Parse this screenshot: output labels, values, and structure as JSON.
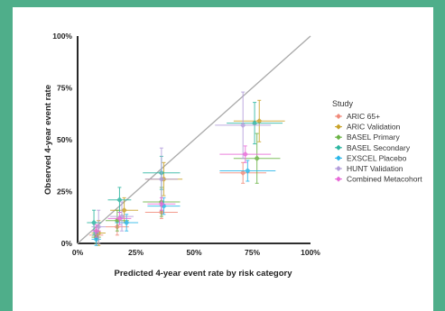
{
  "colors": {
    "page_border": "#4fae8a",
    "panel": "#ffffff",
    "identity_line": "#a9a9a9"
  },
  "chart_data": {
    "type": "scatter",
    "title": "",
    "xlabel": "Predicted 4-year event rate by risk category",
    "ylabel": "Observed 4-year event rate",
    "xlim": [
      0,
      100
    ],
    "ylim": [
      0,
      100
    ],
    "x_ticks": [
      "0%",
      "25%",
      "50%",
      "75%",
      "100%"
    ],
    "y_ticks": [
      "0%",
      "25%",
      "50%",
      "75%",
      "100%"
    ],
    "tick_values": [
      0,
      25,
      50,
      75,
      100
    ],
    "grid": false,
    "identity_line": true,
    "legend": {
      "title": "Study",
      "position": "right"
    },
    "series": [
      {
        "name": "ARIC 65+",
        "color": "#f08a7a",
        "points": [
          {
            "x": 8,
            "y": 4,
            "xerr": 3,
            "yerr": 4
          },
          {
            "x": 17,
            "y": 8,
            "xerr": 5,
            "yerr": 4
          },
          {
            "x": 36,
            "y": 15,
            "xerr": 7,
            "yerr": 3
          },
          {
            "x": 71,
            "y": 34,
            "xerr": 10,
            "yerr": 5
          }
        ]
      },
      {
        "name": "ARIC Validation",
        "color": "#c9a227",
        "points": [
          {
            "x": 9,
            "y": 5,
            "xerr": 3,
            "yerr": 6
          },
          {
            "x": 20,
            "y": 16,
            "xerr": 6,
            "yerr": 6
          },
          {
            "x": 37,
            "y": 31,
            "xerr": 8,
            "yerr": 8
          },
          {
            "x": 78,
            "y": 59,
            "xerr": 11,
            "yerr": 10
          }
        ]
      },
      {
        "name": "BASEL Primary",
        "color": "#6ab344",
        "points": [
          {
            "x": 8,
            "y": 3,
            "xerr": 2,
            "yerr": 3
          },
          {
            "x": 17,
            "y": 11,
            "xerr": 5,
            "yerr": 5
          },
          {
            "x": 36,
            "y": 20,
            "xerr": 8,
            "yerr": 7
          },
          {
            "x": 77,
            "y": 41,
            "xerr": 10,
            "yerr": 12
          }
        ]
      },
      {
        "name": "BASEL Secondary",
        "color": "#2bb5a0",
        "points": [
          {
            "x": 7,
            "y": 10,
            "xerr": 3,
            "yerr": 6
          },
          {
            "x": 18,
            "y": 21,
            "xerr": 5,
            "yerr": 6
          },
          {
            "x": 36,
            "y": 34,
            "xerr": 8,
            "yerr": 8
          },
          {
            "x": 76,
            "y": 58,
            "xerr": 12,
            "yerr": 10
          }
        ]
      },
      {
        "name": "EXSCEL Placebo",
        "color": "#29b6e8",
        "points": [
          {
            "x": 8,
            "y": 2,
            "xerr": 2,
            "yerr": 3
          },
          {
            "x": 21,
            "y": 10,
            "xerr": 5,
            "yerr": 4
          },
          {
            "x": 37,
            "y": 18,
            "xerr": 7,
            "yerr": 4
          },
          {
            "x": 73,
            "y": 35,
            "xerr": 12,
            "yerr": 5
          }
        ]
      },
      {
        "name": "HUNT Validation",
        "color": "#b39ddb",
        "points": [
          {
            "x": 9,
            "y": 8,
            "xerr": 3,
            "yerr": 8
          },
          {
            "x": 19,
            "y": 13,
            "xerr": 5,
            "yerr": 7
          },
          {
            "x": 36,
            "y": 31,
            "xerr": 7,
            "yerr": 15
          },
          {
            "x": 71,
            "y": 57,
            "xerr": 12,
            "yerr": 16
          }
        ]
      },
      {
        "name": "Combined Metacohort",
        "color": "#e86ad8",
        "points": [
          {
            "x": 8,
            "y": 6,
            "xerr": 2,
            "yerr": 3
          },
          {
            "x": 18,
            "y": 12,
            "xerr": 5,
            "yerr": 3
          },
          {
            "x": 36,
            "y": 19,
            "xerr": 6,
            "yerr": 3
          },
          {
            "x": 72,
            "y": 43,
            "xerr": 11,
            "yerr": 4
          }
        ]
      }
    ]
  }
}
